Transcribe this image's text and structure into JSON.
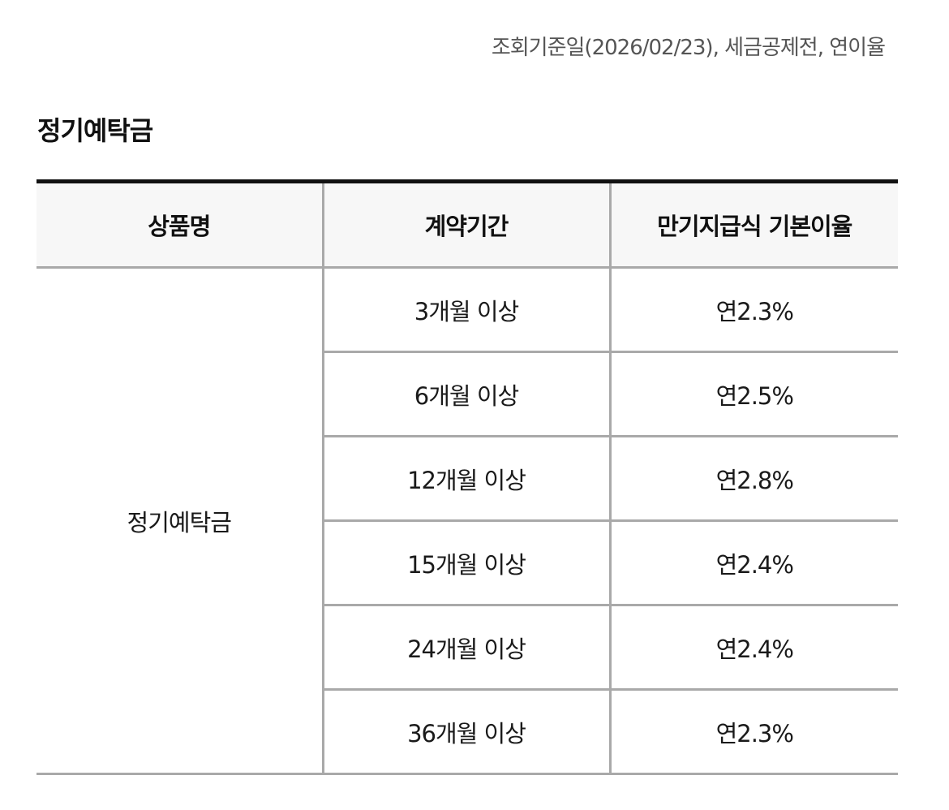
{
  "basis_note": "조회기준일(2026/02/23), 세금공제전, 연이율",
  "section_title": "정기예탁금",
  "table": {
    "headers": [
      "상품명",
      "계약기간",
      "만기지급식 기본이율"
    ],
    "product_name": "정기예탁금",
    "rows": [
      {
        "period": "3개월 이상",
        "rate": "연2.3%"
      },
      {
        "period": "6개월 이상",
        "rate": "연2.5%"
      },
      {
        "period": "12개월 이상",
        "rate": "연2.8%"
      },
      {
        "period": "15개월 이상",
        "rate": "연2.4%"
      },
      {
        "period": "24개월 이상",
        "rate": "연2.4%"
      },
      {
        "period": "36개월 이상",
        "rate": "연2.3%"
      }
    ]
  },
  "colors": {
    "header_background": "#f7f7f7",
    "top_border": "#111111",
    "grid_line": "#a9a9a9",
    "note_text": "#555555"
  }
}
